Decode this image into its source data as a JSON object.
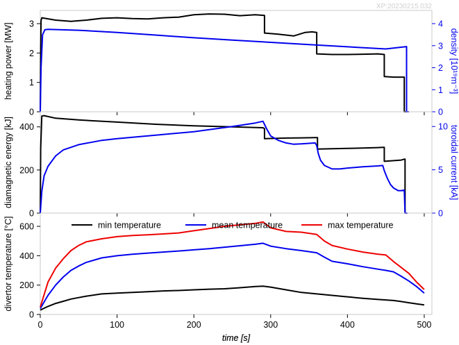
{
  "watermark": "XP:20230215.032",
  "colors": {
    "black": "#000000",
    "blue": "#0000ee",
    "red": "#ee0000"
  },
  "chart_data": [
    {
      "type": "line",
      "xlabel": "time [s]",
      "xlim": [
        0,
        510
      ],
      "ylabel": "heating power [MW]",
      "ylim": [
        0,
        3.45
      ],
      "yticks": [
        0,
        1,
        2,
        3
      ],
      "y2label": "density [10¹⁹m⁻³]",
      "y2lim": [
        0,
        4.6
      ],
      "y2ticks": [
        0,
        1,
        2,
        3,
        4
      ],
      "series": [
        {
          "axis": "left",
          "color": "#000000",
          "x": [
            0,
            0.5,
            1,
            2,
            20,
            40,
            60,
            80,
            100,
            120,
            140,
            160,
            180,
            200,
            220,
            240,
            260,
            280,
            292,
            292,
            310,
            330,
            345,
            354,
            360,
            360,
            380,
            400,
            420,
            440,
            448,
            448,
            460,
            470,
            474,
            474,
            478
          ],
          "y": [
            0,
            2.1,
            3.1,
            3.2,
            3.12,
            3.08,
            3.12,
            3.18,
            3.2,
            3.17,
            3.16,
            3.2,
            3.22,
            3.3,
            3.33,
            3.32,
            3.27,
            3.3,
            3.28,
            2.68,
            2.64,
            2.58,
            2.7,
            2.72,
            2.7,
            1.97,
            1.95,
            1.95,
            1.96,
            1.97,
            1.95,
            1.2,
            1.18,
            1.18,
            1.18,
            0,
            0
          ]
        },
        {
          "axis": "right",
          "color": "#0000ee",
          "x": [
            0,
            1,
            3,
            6,
            10,
            50,
            100,
            150,
            200,
            250,
            300,
            350,
            400,
            450,
            477,
            477,
            480
          ],
          "y": [
            0,
            2.0,
            3.5,
            3.72,
            3.74,
            3.7,
            3.6,
            3.48,
            3.36,
            3.25,
            3.15,
            3.05,
            2.95,
            2.85,
            2.96,
            0,
            0
          ]
        }
      ]
    },
    {
      "type": "line",
      "xlim": [
        0,
        510
      ],
      "ylabel": "diamagnetic energy [kJ]",
      "ylim": [
        0,
        470
      ],
      "yticks": [
        0,
        200,
        400
      ],
      "y2label": "toroidal current [kA]",
      "y2lim": [
        0,
        11.7
      ],
      "y2ticks": [
        0,
        5,
        10
      ],
      "series": [
        {
          "axis": "left",
          "color": "#000000",
          "x": [
            0,
            0.5,
            2,
            5,
            20,
            50,
            100,
            150,
            200,
            250,
            290,
            292,
            292,
            320,
            340,
            358,
            361,
            361,
            400,
            420,
            440,
            446,
            448,
            448,
            470,
            474,
            475,
            475,
            478
          ],
          "y": [
            0,
            300,
            450,
            452,
            440,
            432,
            422,
            412,
            405,
            400,
            396,
            392,
            345,
            348,
            349,
            350,
            350,
            297,
            300,
            302,
            304,
            305,
            305,
            240,
            246,
            250,
            250,
            0,
            0
          ]
        },
        {
          "axis": "right",
          "color": "#0000ee",
          "x": [
            0,
            2,
            5,
            10,
            20,
            30,
            50,
            80,
            100,
            150,
            200,
            250,
            280,
            290,
            295,
            300,
            310,
            320,
            330,
            340,
            350,
            358,
            360,
            362,
            365,
            370,
            380,
            390,
            400,
            420,
            440,
            446,
            448,
            452,
            456,
            460,
            466,
            470,
            474,
            475,
            478
          ],
          "y": [
            0,
            2.5,
            4.3,
            5.4,
            6.6,
            7.3,
            7.9,
            8.4,
            8.6,
            9.0,
            9.4,
            10.0,
            10.4,
            10.6,
            9.7,
            8.9,
            8.4,
            8.1,
            7.95,
            8.0,
            8.05,
            8.1,
            7.8,
            6.9,
            6.1,
            5.5,
            5.1,
            5.1,
            5.2,
            5.35,
            5.45,
            5.5,
            4.9,
            4.0,
            3.3,
            2.9,
            2.6,
            2.6,
            2.65,
            0,
            0
          ]
        }
      ]
    },
    {
      "type": "line",
      "xlim": [
        0,
        510
      ],
      "xticks": [
        0,
        100,
        200,
        300,
        400,
        500
      ],
      "ylabel": "divertor temperature [°C]",
      "ylim": [
        0,
        690
      ],
      "yticks": [
        0,
        200,
        400,
        600
      ],
      "legend_position": "top",
      "series": [
        {
          "name": "min temperature",
          "color": "#000000",
          "x": [
            0,
            10,
            20,
            30,
            40,
            50,
            60,
            80,
            100,
            120,
            140,
            160,
            180,
            200,
            220,
            240,
            260,
            280,
            290,
            300,
            320,
            340,
            360,
            380,
            400,
            420,
            440,
            460,
            470,
            480,
            490,
            500
          ],
          "y": [
            30,
            55,
            75,
            90,
            105,
            115,
            125,
            140,
            145,
            150,
            155,
            160,
            163,
            168,
            172,
            175,
            182,
            190,
            193,
            186,
            168,
            150,
            140,
            130,
            120,
            110,
            102,
            95,
            88,
            80,
            72,
            65
          ]
        },
        {
          "name": "mean temperature",
          "color": "#0000ee",
          "x": [
            0,
            10,
            20,
            30,
            40,
            50,
            60,
            80,
            100,
            120,
            140,
            160,
            180,
            200,
            220,
            240,
            260,
            280,
            290,
            300,
            320,
            340,
            360,
            370,
            380,
            400,
            420,
            440,
            450,
            460,
            470,
            480,
            490,
            500
          ],
          "y": [
            40,
            130,
            200,
            255,
            300,
            330,
            355,
            385,
            400,
            410,
            418,
            425,
            432,
            440,
            448,
            458,
            468,
            478,
            485,
            465,
            448,
            435,
            420,
            390,
            362,
            345,
            325,
            308,
            300,
            290,
            260,
            228,
            190,
            145
          ]
        },
        {
          "name": "max temperature",
          "color": "#ee0000",
          "x": [
            0,
            10,
            20,
            30,
            40,
            50,
            60,
            80,
            100,
            120,
            140,
            160,
            180,
            200,
            220,
            240,
            260,
            280,
            290,
            300,
            320,
            340,
            360,
            370,
            380,
            400,
            420,
            440,
            450,
            460,
            470,
            480,
            490,
            500
          ],
          "y": [
            50,
            220,
            315,
            380,
            435,
            470,
            495,
            515,
            530,
            538,
            542,
            548,
            555,
            570,
            585,
            600,
            610,
            620,
            630,
            590,
            565,
            560,
            545,
            500,
            470,
            445,
            425,
            410,
            405,
            360,
            320,
            280,
            220,
            170
          ]
        }
      ]
    }
  ]
}
